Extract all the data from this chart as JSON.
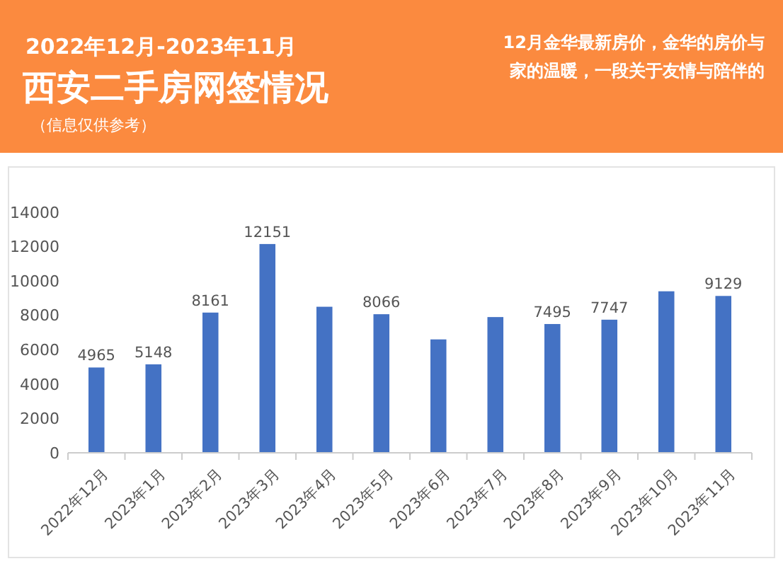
{
  "chart_data": {
    "type": "bar",
    "title": "西安二手房网签情况",
    "subtitle": "2022年12月-2023年11月",
    "annotations": [
      "（信息仅供参考）",
      "12月金华最新房价，金华的房价与家的温暖，一段关于友情与陪伴的"
    ],
    "categories": [
      "2022年12月",
      "2023年1月",
      "2023年2月",
      "2023年3月",
      "2023年4月",
      "2023年5月",
      "2023年6月",
      "2023年7月",
      "2023年8月",
      "2023年9月",
      "2023年10月",
      "2023年11月"
    ],
    "values": [
      4965,
      5148,
      8161,
      12151,
      8500,
      8066,
      6600,
      7900,
      7495,
      7747,
      9400,
      9129
    ],
    "value_labels": [
      "4965",
      "5148",
      "8161",
      "12151",
      null,
      "8066",
      null,
      null,
      "7495",
      "7747",
      null,
      "9129"
    ],
    "color": "#4472c4",
    "ylim": [
      0,
      14000
    ],
    "yticks": [
      0,
      2000,
      4000,
      6000,
      8000,
      10000,
      12000,
      14000
    ],
    "grid": false
  }
}
